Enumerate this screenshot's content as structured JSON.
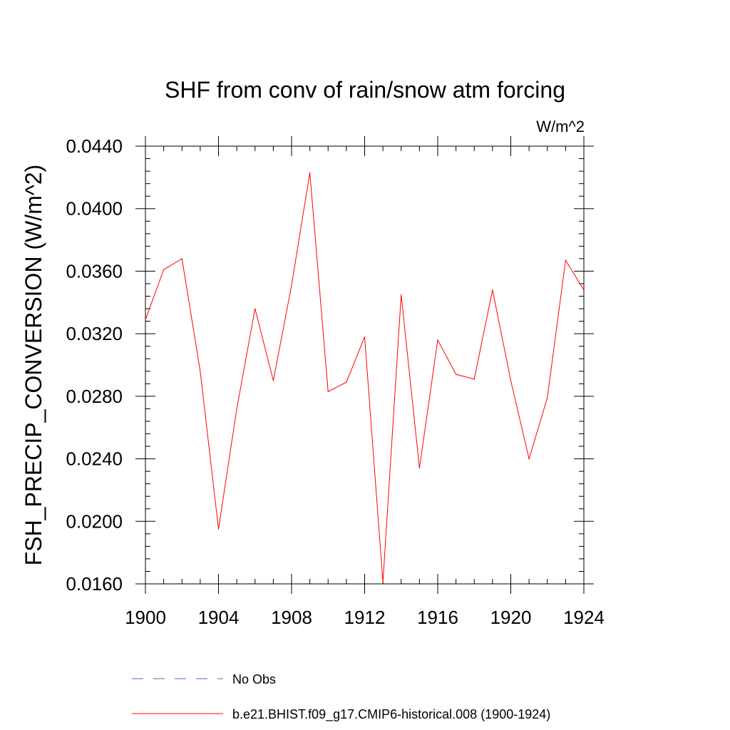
{
  "chart_data": {
    "type": "line",
    "title": "SHF from conv of rain/snow atm forcing",
    "units_label": "W/m^2",
    "xlabel": "",
    "ylabel": "FSH_PRECIP_CONVERSION  (W/m^2)",
    "xlim": [
      1900,
      1924
    ],
    "ylim": [
      0.016,
      0.044
    ],
    "x_ticks": [
      "1900",
      "1904",
      "1908",
      "1912",
      "1916",
      "1920",
      "1924"
    ],
    "y_ticks": [
      "0.0160",
      "0.0200",
      "0.0240",
      "0.0280",
      "0.0320",
      "0.0360",
      "0.0400",
      "0.0440"
    ],
    "grid": false,
    "legend_position": "bottom",
    "x": [
      1900,
      1901,
      1902,
      1903,
      1904,
      1905,
      1906,
      1907,
      1908,
      1909,
      1910,
      1911,
      1912,
      1913,
      1914,
      1915,
      1916,
      1917,
      1918,
      1919,
      1920,
      1921,
      1922,
      1923,
      1924
    ],
    "series": [
      {
        "name": "b.e21.BHIST.f09_g17.CMIP6-historical.008 (1900-1924)",
        "color": "#ff0000",
        "style": "solid",
        "values": [
          0.0329,
          0.0361,
          0.0368,
          0.0296,
          0.0195,
          0.0272,
          0.0336,
          0.029,
          0.0351,
          0.0423,
          0.0283,
          0.0289,
          0.0318,
          0.0161,
          0.0345,
          0.0234,
          0.0316,
          0.0294,
          0.0291,
          0.0348,
          0.029,
          0.024,
          0.0279,
          0.0367,
          0.0348
        ]
      }
    ],
    "legend": [
      {
        "label": "No Obs",
        "color": "#6a5acd",
        "style": "dashed"
      },
      {
        "label": "b.e21.BHIST.f09_g17.CMIP6-historical.008 (1900-1924)",
        "color": "#ff0000",
        "style": "solid"
      }
    ]
  }
}
